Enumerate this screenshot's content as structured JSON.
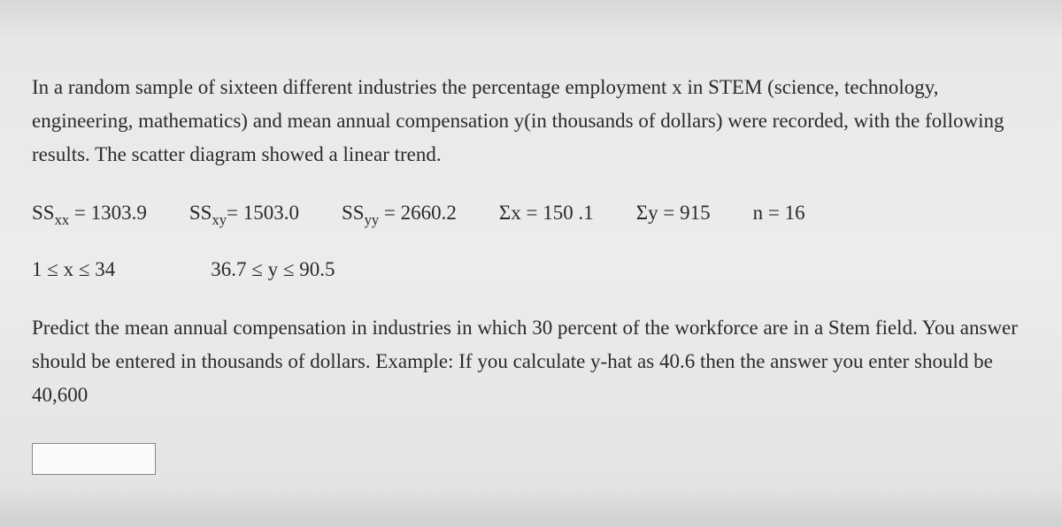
{
  "intro": {
    "text": "In a random sample of sixteen different industries the percentage employment  x  in STEM (science, technology, engineering, mathematics) and mean annual compensation y(in thousands of dollars) were recorded, with the following results.  The scatter diagram showed a linear trend."
  },
  "stats": {
    "ssxx_label": "SS",
    "ssxx_sub": "xx",
    "ssxx_val": " = 1303.9",
    "ssxy_label": "SS",
    "ssxy_sub": "xy",
    "ssxy_val": "= 1503.0",
    "ssyy_label": "SS",
    "ssyy_sub": "yy",
    "ssyy_val": " = 2660.2",
    "sumx": "Σx = 150 .1",
    "sumy": "Σy = 915",
    "n": "n = 16"
  },
  "ranges": {
    "x_range": "1 ≤ x ≤ 34",
    "y_range": "36.7 ≤  y  ≤ 90.5"
  },
  "question": {
    "text": "Predict the mean annual compensation in industries in which 30 percent of the workforce are in a Stem field.  You answer should be entered in thousands of dollars.   Example:  If you calculate y-hat as 40.6 then the answer you enter should be 40,600"
  },
  "answer": {
    "value": ""
  }
}
